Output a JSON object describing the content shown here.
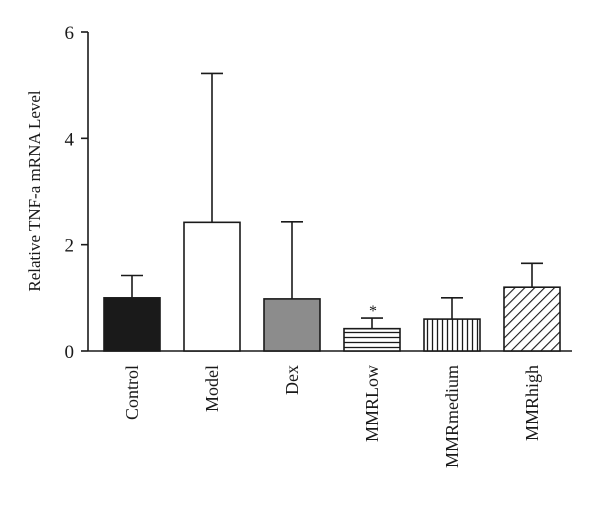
{
  "chart_data": {
    "type": "bar",
    "title": "",
    "xlabel": "",
    "ylabel": "Relative TNF-a mRNA Level",
    "ylim": [
      0,
      6
    ],
    "yticks": [
      0,
      2,
      4,
      6
    ],
    "grid": false,
    "legend": "none",
    "categories": [
      "Control",
      "Model",
      "Dex",
      "MMRLow",
      "MMRmedium",
      "MMRhigh"
    ],
    "values": [
      1.0,
      2.42,
      0.98,
      0.42,
      0.6,
      1.2
    ],
    "error_upper": [
      0.42,
      2.8,
      1.45,
      0.2,
      0.4,
      0.45
    ],
    "annotations": [
      {
        "category": "MMRLow",
        "text": "*"
      }
    ],
    "bar_styles": [
      {
        "fill": "#1a1a1a",
        "pattern": "solid"
      },
      {
        "fill": "#ffffff",
        "pattern": "solid"
      },
      {
        "fill": "#8c8c8c",
        "pattern": "solid"
      },
      {
        "fill": "#ffffff",
        "pattern": "horizontal-lines"
      },
      {
        "fill": "#ffffff",
        "pattern": "vertical-lines"
      },
      {
        "fill": "#ffffff",
        "pattern": "diagonal-lines"
      }
    ]
  }
}
